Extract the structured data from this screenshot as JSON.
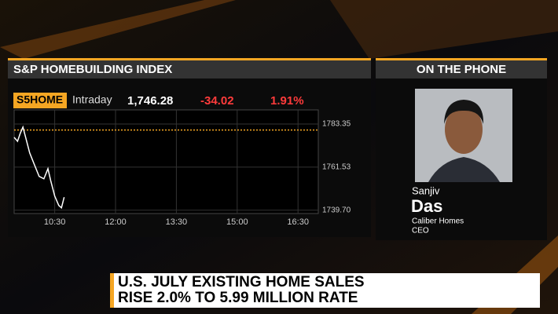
{
  "panel": {
    "title": "S&P HOMEBUILDING INDEX"
  },
  "quote": {
    "ticker": "S5HOME",
    "period": "Intraday",
    "last": "1,746.28",
    "change": "-34.02",
    "change_pct": "1.91%"
  },
  "chart_data": {
    "type": "line",
    "x": [
      570,
      575,
      579,
      583,
      587,
      593,
      600,
      607,
      614,
      620,
      624,
      630,
      636,
      640,
      644
    ],
    "series": [
      {
        "color": "#ffffff",
        "values": [
          1776.6,
          1774.6,
          1778.6,
          1781.8,
          1776.6,
          1768.7,
          1762.7,
          1756.8,
          1755.6,
          1760.7,
          1754.8,
          1746.9,
          1742.1,
          1740.9,
          1746.3
        ]
      }
    ],
    "reference_line": {
      "value": 1780.3,
      "color": "#f5a623"
    },
    "xlim": [
      570,
      1020
    ],
    "xticks": [
      {
        "value": 630,
        "label": "10:30"
      },
      {
        "value": 720,
        "label": "12:00"
      },
      {
        "value": 810,
        "label": "13:30"
      },
      {
        "value": 900,
        "label": "15:00"
      },
      {
        "value": 990,
        "label": "16:30"
      }
    ],
    "ylim": [
      1738,
      1790.5
    ],
    "yticks": [
      {
        "value": 1739.7,
        "label": "1739.70"
      },
      1761.53,
      1783.35
    ],
    "grid": true
  },
  "guest": {
    "header": "ON THE PHONE",
    "first_name": "Sanjiv",
    "last_name": "Das",
    "company": "Caliber Homes",
    "role": "CEO"
  },
  "headline": {
    "lines": [
      "U.S. JULY EXISTING HOME SALES",
      "RISE 2.0% TO 5.99 MILLION RATE"
    ]
  }
}
